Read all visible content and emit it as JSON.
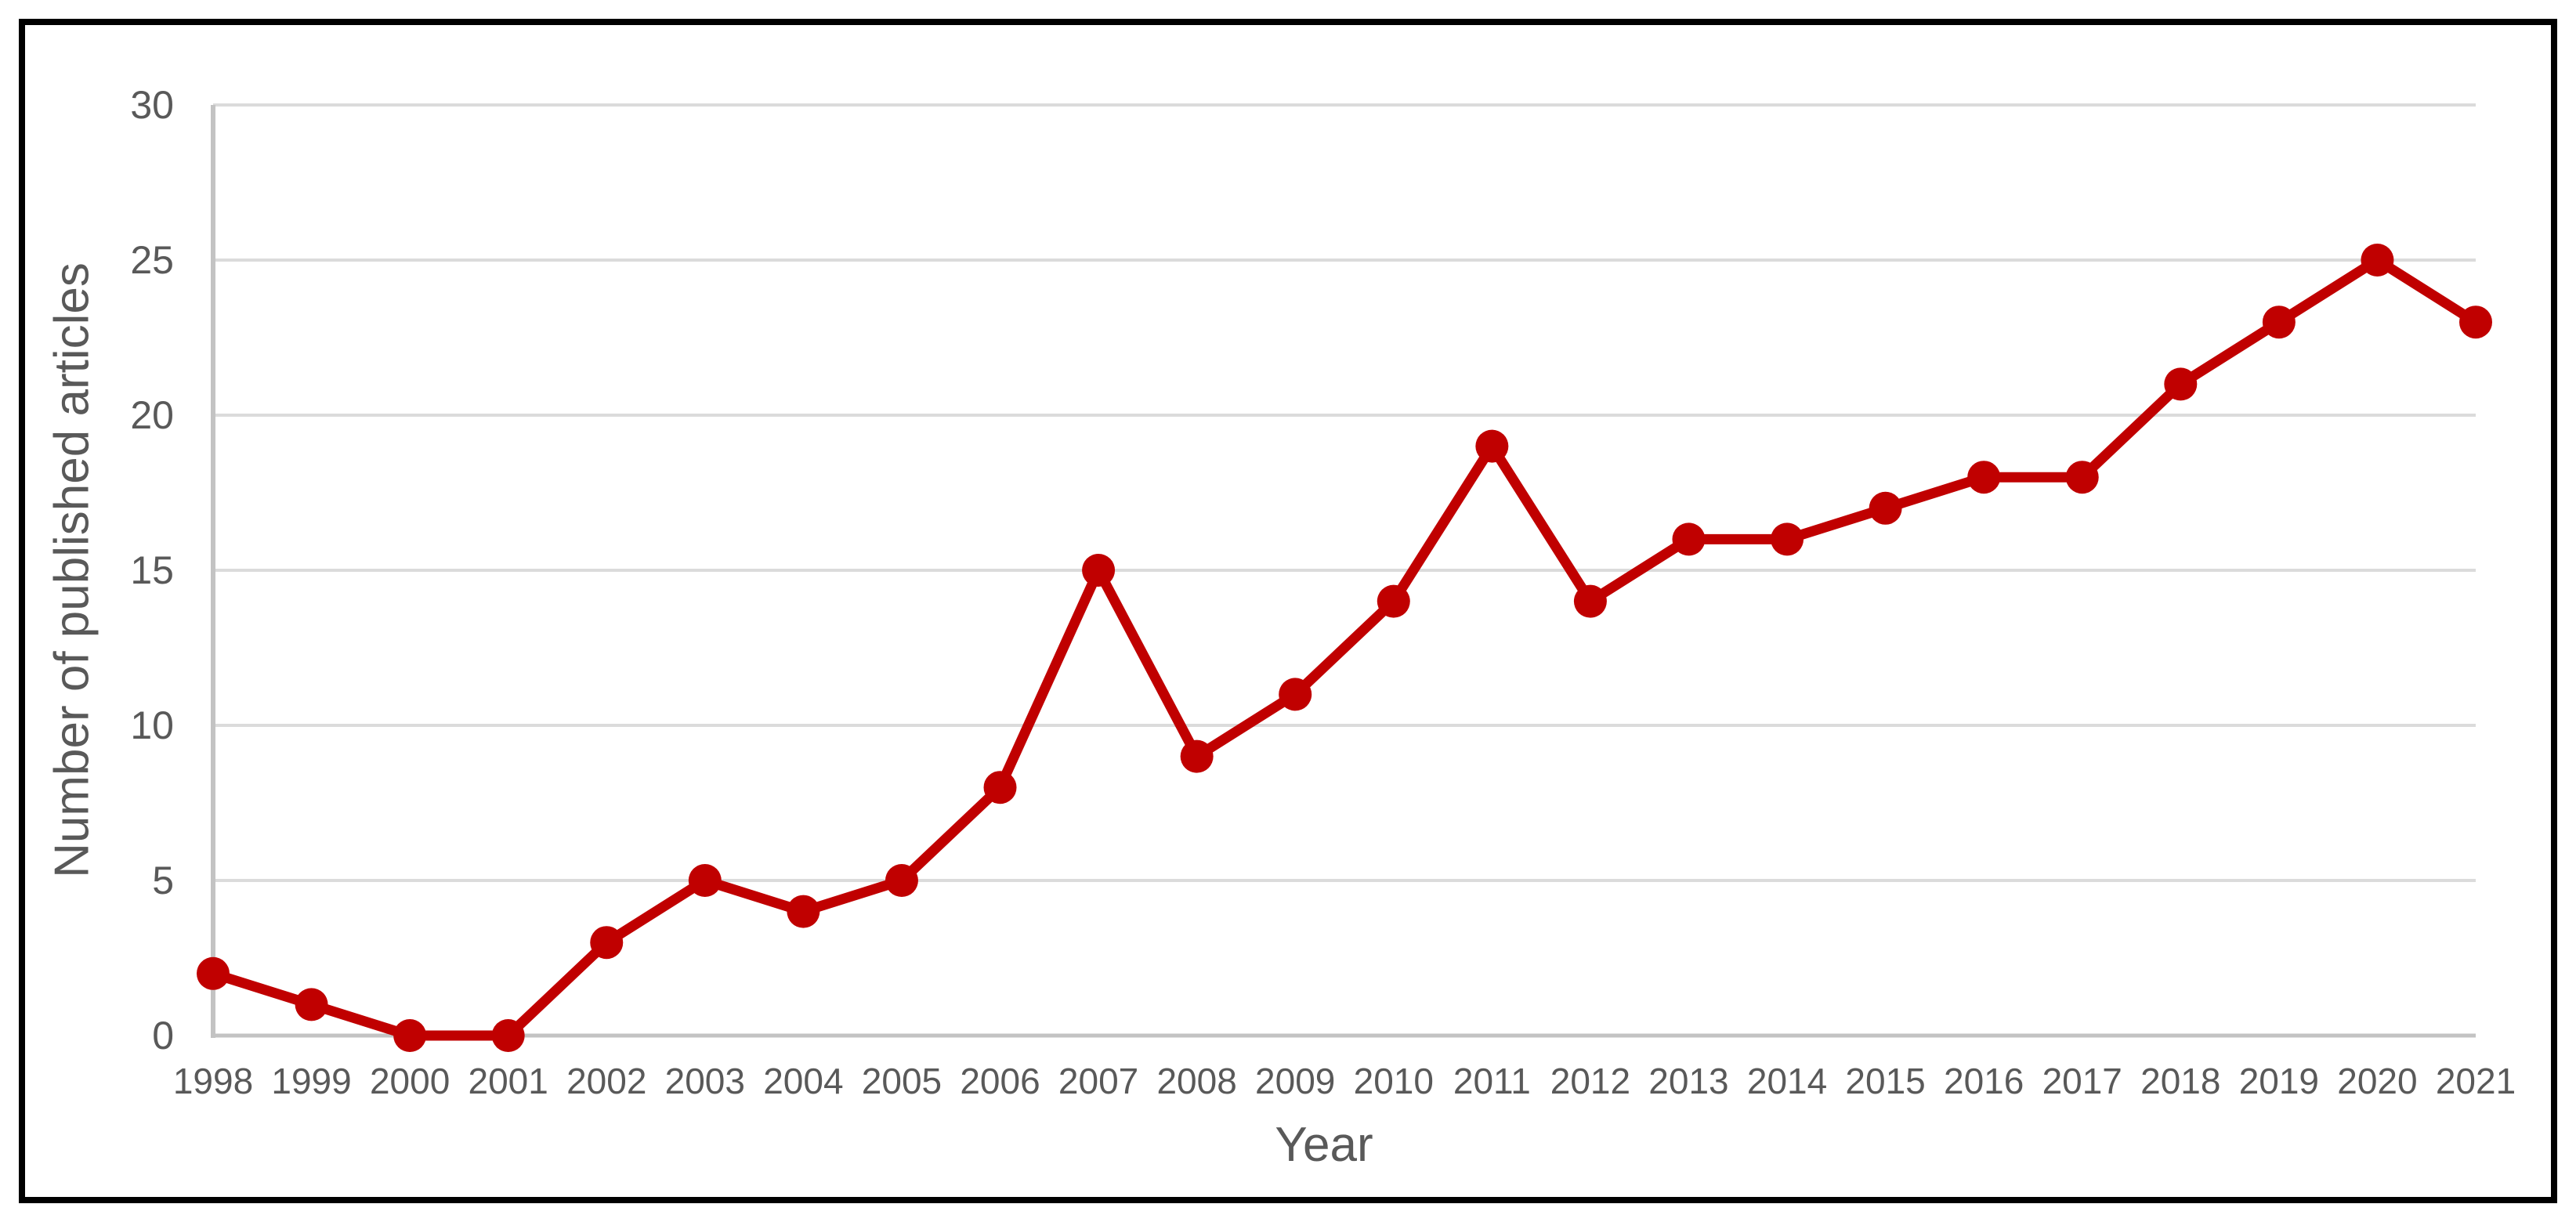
{
  "chart_data": {
    "type": "line",
    "title": "",
    "xlabel": "Year",
    "ylabel": "Number of published articles",
    "x": [
      1998,
      1999,
      2000,
      2001,
      2002,
      2003,
      2004,
      2005,
      2006,
      2007,
      2008,
      2009,
      2010,
      2011,
      2012,
      2013,
      2014,
      2015,
      2016,
      2017,
      2018,
      2019,
      2020,
      2021
    ],
    "series": [
      {
        "name": "Number of published articles",
        "values": [
          2,
          1,
          0,
          0,
          3,
          5,
          4,
          5,
          8,
          15,
          9,
          11,
          14,
          19,
          14,
          16,
          16,
          17,
          18,
          18,
          21,
          23,
          25,
          23
        ]
      }
    ],
    "ylim": [
      0,
      30
    ],
    "yticks": [
      0,
      5,
      10,
      15,
      20,
      25,
      30
    ],
    "grid": true,
    "legend": false,
    "colors": {
      "series": "#C00000",
      "text": "#595959",
      "gridline": "#DBDBDB",
      "axis_line": "#C3C3C3",
      "frame_border": "#000000",
      "background": "#FFFFFF"
    }
  }
}
